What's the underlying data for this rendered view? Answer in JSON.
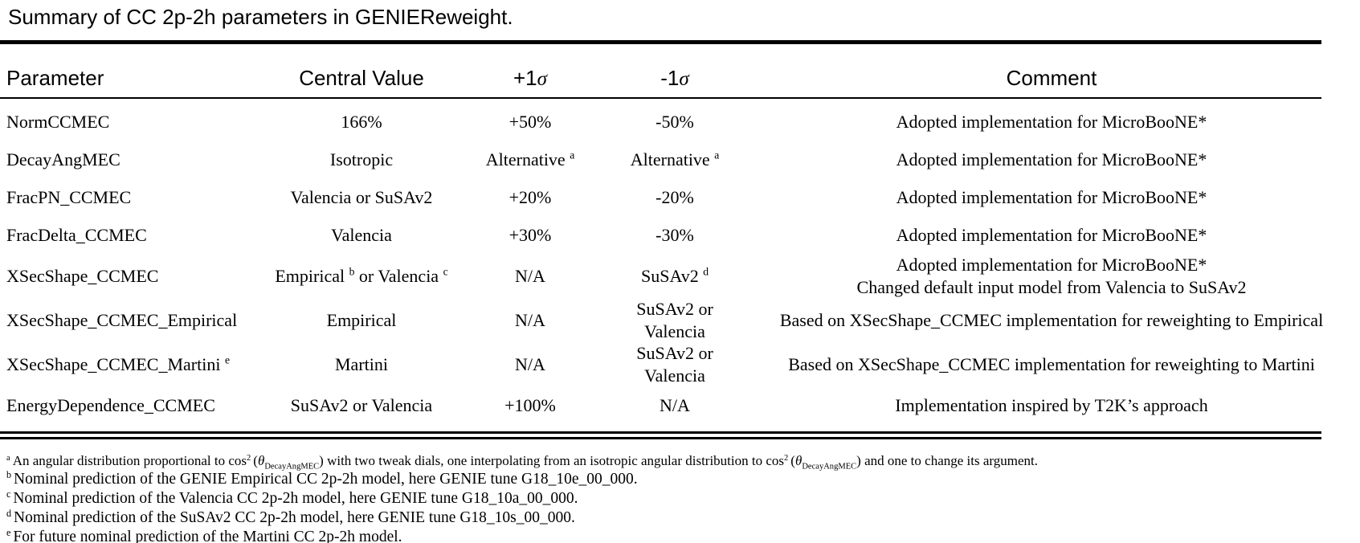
{
  "title": "Summary of CC 2p-2h parameters in GENIEReweight.",
  "table": {
    "headers": [
      {
        "key": "parameter",
        "parts": [
          {
            "t": "Parameter"
          }
        ]
      },
      {
        "key": "central-value",
        "parts": [
          {
            "t": "Central Value"
          }
        ]
      },
      {
        "key": "plus-1-sigma",
        "parts": [
          {
            "t": "+1"
          },
          {
            "i": "σ"
          }
        ]
      },
      {
        "key": "minus-1-sigma",
        "parts": [
          {
            "t": "-1"
          },
          {
            "i": "σ"
          }
        ]
      },
      {
        "key": "comment",
        "parts": [
          {
            "t": "Comment"
          }
        ]
      }
    ],
    "rows": [
      {
        "cells": [
          [
            {
              "t": "NormCCMEC"
            }
          ],
          [
            {
              "t": "166%"
            }
          ],
          [
            {
              "t": "+50%"
            }
          ],
          [
            {
              "t": "-50%"
            }
          ],
          [
            {
              "t": "Adopted implementation for MicroBooNE*"
            }
          ]
        ]
      },
      {
        "cells": [
          [
            {
              "t": "DecayAngMEC"
            }
          ],
          [
            {
              "t": "Isotropic"
            }
          ],
          [
            {
              "t": "Alternative "
            },
            {
              "sup": "a"
            }
          ],
          [
            {
              "t": "Alternative "
            },
            {
              "sup": "a"
            }
          ],
          [
            {
              "t": "Adopted implementation for MicroBooNE*"
            }
          ]
        ]
      },
      {
        "cells": [
          [
            {
              "t": "FracPN_CCMEC"
            }
          ],
          [
            {
              "t": "Valencia or SuSAv2"
            }
          ],
          [
            {
              "t": "+20%"
            }
          ],
          [
            {
              "t": "-20%"
            }
          ],
          [
            {
              "t": "Adopted implementation for MicroBooNE*"
            }
          ]
        ]
      },
      {
        "cells": [
          [
            {
              "t": "FracDelta_CCMEC"
            }
          ],
          [
            {
              "t": "Valencia"
            }
          ],
          [
            {
              "t": "+30%"
            }
          ],
          [
            {
              "t": "-30%"
            }
          ],
          [
            {
              "t": "Adopted implementation for MicroBooNE*"
            }
          ]
        ]
      },
      {
        "cells": [
          [
            {
              "t": "XSecShape_CCMEC"
            }
          ],
          [
            {
              "t": "Empirical "
            },
            {
              "sup": "b"
            },
            {
              "t": " or Valencia "
            },
            {
              "sup": "c"
            }
          ],
          [
            {
              "t": "N/A"
            }
          ],
          [
            {
              "t": "SuSAv2 "
            },
            {
              "sup": "d"
            }
          ],
          [
            {
              "t": "Adopted implementation for MicroBooNE*"
            },
            {
              "br": true
            },
            {
              "t": "Changed default input model from Valencia to SuSAv2"
            }
          ]
        ]
      },
      {
        "cells": [
          [
            {
              "t": "XSecShape_CCMEC_Empirical"
            }
          ],
          [
            {
              "t": "Empirical"
            }
          ],
          [
            {
              "t": "N/A"
            }
          ],
          [
            {
              "t": "SuSAv2 or Valencia"
            }
          ],
          [
            {
              "t": "Based on XSecShape_CCMEC implementation for reweighting to Empirical"
            }
          ]
        ]
      },
      {
        "cells": [
          [
            {
              "t": "XSecShape_CCMEC_Martini "
            },
            {
              "sup": "e"
            }
          ],
          [
            {
              "t": "Martini"
            }
          ],
          [
            {
              "t": "N/A"
            }
          ],
          [
            {
              "t": "SuSAv2 or Valencia"
            }
          ],
          [
            {
              "t": "Based on XSecShape_CCMEC implementation for reweighting to Martini"
            }
          ]
        ]
      },
      {
        "cells": [
          [
            {
              "t": "EnergyDependence_CCMEC"
            }
          ],
          [
            {
              "t": "SuSAv2 or Valencia"
            }
          ],
          [
            {
              "t": "+100%"
            }
          ],
          [
            {
              "t": "N/A"
            }
          ],
          [
            {
              "t": "Implementation inspired by T2K’s approach"
            }
          ]
        ]
      }
    ]
  },
  "footnotes": [
    {
      "marker": "a",
      "size": "small",
      "parts": [
        {
          "t": "An angular distribution proportional to cos"
        },
        {
          "sup": "2"
        },
        {
          "t": "("
        },
        {
          "i": "θ"
        },
        {
          "sub": "DecayAngMEC"
        },
        {
          "t": ") with two tweak dials, one interpolating from an isotropic angular distribution to cos"
        },
        {
          "sup": "2"
        },
        {
          "t": "("
        },
        {
          "i": "θ"
        },
        {
          "sub": "DecayAngMEC"
        },
        {
          "t": ") and one to change its argument."
        }
      ]
    },
    {
      "marker": "b",
      "parts": [
        {
          "t": "Nominal prediction of the GENIE Empirical CC 2p-2h model, here GENIE tune G18_10e_00_000."
        }
      ]
    },
    {
      "marker": "c",
      "parts": [
        {
          "t": "Nominal prediction of the Valencia CC 2p-2h model, here GENIE tune G18_10a_00_000."
        }
      ]
    },
    {
      "marker": "d",
      "parts": [
        {
          "t": "Nominal prediction of the SuSAv2 CC 2p-2h model, here GENIE tune G18_10s_00_000."
        }
      ]
    },
    {
      "marker": "e",
      "parts": [
        {
          "t": "For future nominal prediction of the Martini CC 2p-2h model."
        }
      ]
    }
  ]
}
